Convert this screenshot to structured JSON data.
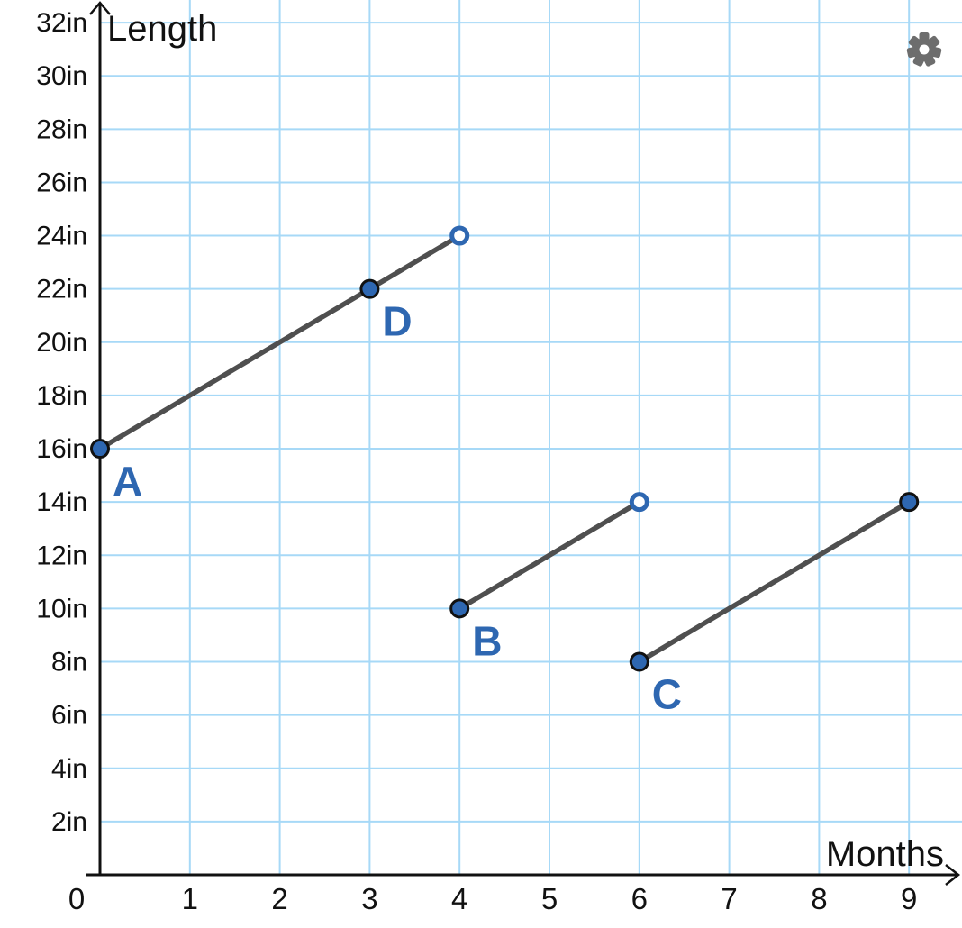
{
  "app": {
    "background": "#ffffff",
    "settings_icon": "gear"
  },
  "colors": {
    "grid": "#a7d9f7",
    "axis": "#111111",
    "tick_text": "#111111",
    "segment": "#4f4f4f",
    "point_fill": "#2e67b1",
    "point_stroke": "#111111",
    "open_point_fill": "#ffffff",
    "point_label": "#2e67b1",
    "gear": "#6d6d6d"
  },
  "chart_data": {
    "type": "line",
    "title": "",
    "xlabel": "Months",
    "ylabel": "Length",
    "grid": true,
    "legend": "none",
    "xlim": [
      0,
      9.6
    ],
    "ylim": [
      0,
      32.8
    ],
    "x_ticks": [
      0,
      1,
      2,
      3,
      4,
      5,
      6,
      7,
      8,
      9
    ],
    "y_ticks": [
      2,
      4,
      6,
      8,
      10,
      12,
      14,
      16,
      18,
      20,
      22,
      24,
      26,
      28,
      30,
      32
    ],
    "y_tick_suffix": "in",
    "y_tick_labels": [
      "2in",
      "4in",
      "6in",
      "8in",
      "10in",
      "12in",
      "14in",
      "16in",
      "18in",
      "20in",
      "22in",
      "24in",
      "26in",
      "28in",
      "30in",
      "32in"
    ],
    "segments": [
      {
        "name": "segment-A-D",
        "from": {
          "x": 0,
          "y": 16
        },
        "to": {
          "x": 4,
          "y": 24
        }
      },
      {
        "name": "segment-B",
        "from": {
          "x": 4,
          "y": 10
        },
        "to": {
          "x": 6,
          "y": 14
        }
      },
      {
        "name": "segment-C",
        "from": {
          "x": 6,
          "y": 8
        },
        "to": {
          "x": 9,
          "y": 14
        }
      }
    ],
    "points": [
      {
        "label": "A",
        "x": 0,
        "y": 16,
        "style": "filled"
      },
      {
        "label": "D",
        "x": 3,
        "y": 22,
        "style": "filled"
      },
      {
        "label": "",
        "x": 4,
        "y": 24,
        "style": "open"
      },
      {
        "label": "B",
        "x": 4,
        "y": 10,
        "style": "filled"
      },
      {
        "label": "",
        "x": 6,
        "y": 14,
        "style": "open"
      },
      {
        "label": "C",
        "x": 6,
        "y": 8,
        "style": "filled"
      },
      {
        "label": "",
        "x": 9,
        "y": 14,
        "style": "filled"
      }
    ]
  }
}
